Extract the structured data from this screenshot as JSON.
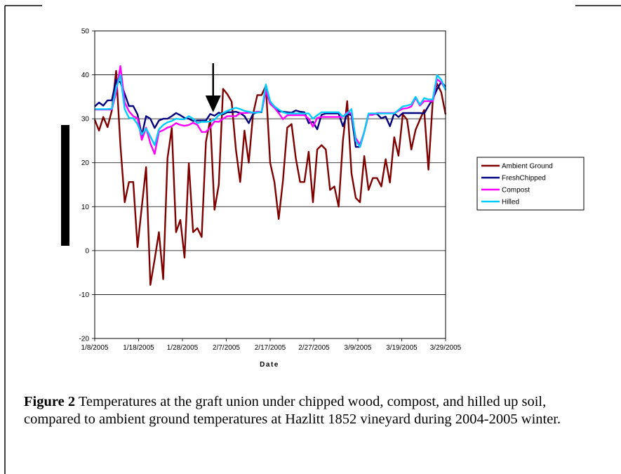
{
  "figure": {
    "label": "Figure 2",
    "text": "Temperatures at the graft union under chipped wood, compost, and hilled up soil, compared to ambient ground temperatures at Hazlitt 1852 vineyard during 2004-2005 winter."
  },
  "chart_data": {
    "type": "line",
    "title": "",
    "xlabel": "Date",
    "ylabel": "",
    "ylim": [
      -20,
      50
    ],
    "yticks": [
      -20,
      -10,
      0,
      10,
      20,
      30,
      40,
      50
    ],
    "xlim": [
      "2005-01-08",
      "2005-03-29"
    ],
    "xticks": [
      "1/8/2005",
      "1/18/2005",
      "1/28/2005",
      "2/7/2005",
      "2/17/2005",
      "2/27/2005",
      "3/9/2005",
      "3/19/2005",
      "3/29/2005"
    ],
    "grid": "horizontal",
    "legend_position": "right",
    "annotation": "arrow-down at 2/4/2005",
    "arrow_date": "2005-02-04",
    "start_date": "2005-01-08",
    "series": [
      {
        "name": "Ambient Ground",
        "color": "#800000",
        "values": [
          29.8,
          27.3,
          30.4,
          28.1,
          31.9,
          40.9,
          24.0,
          11.0,
          15.6,
          15.6,
          0.8,
          10.0,
          19.0,
          -7.8,
          -2.0,
          4.2,
          -6.5,
          21.0,
          27.9,
          4.2,
          7.0,
          -1.6,
          19.9,
          4.2,
          5.1,
          3.1,
          24.8,
          29.8,
          9.3,
          15.0,
          36.8,
          35.6,
          33.9,
          23.0,
          15.6,
          27.3,
          20.0,
          31.0,
          35.4,
          35.4,
          37.5,
          20.0,
          15.6,
          7.2,
          16.0,
          28.0,
          28.8,
          21.0,
          15.6,
          15.6,
          22.5,
          11.0,
          23.0,
          24.0,
          23.0,
          13.8,
          14.6,
          10.0,
          25.0,
          34.0,
          17.6,
          12.0,
          11.0,
          21.5,
          13.8,
          16.5,
          16.5,
          14.6,
          20.8,
          15.5,
          25.8,
          21.6,
          31.0,
          29.8,
          23.0,
          27.5,
          29.8,
          32.0,
          18.4,
          34.0,
          38.0,
          36.0,
          31.0
        ]
      },
      {
        "name": "FreshChipped",
        "color": "#000080",
        "values": [
          32.8,
          33.7,
          33.0,
          34.2,
          34.2,
          38.9,
          38.3,
          35.7,
          32.9,
          32.9,
          31.0,
          26.2,
          30.6,
          30.0,
          27.9,
          29.6,
          30.0,
          30.0,
          30.6,
          31.3,
          30.8,
          30.2,
          30.0,
          29.5,
          29.6,
          29.6,
          29.6,
          31.1,
          30.7,
          31.4,
          31.0,
          31.5,
          31.5,
          31.6,
          31.3,
          30.6,
          29.0,
          31.1,
          31.5,
          31.5,
          36.9,
          33.8,
          32.8,
          31.7,
          31.6,
          31.5,
          31.4,
          31.9,
          31.6,
          31.5,
          29.0,
          29.3,
          27.6,
          30.9,
          31.2,
          31.2,
          31.2,
          31.2,
          28.3,
          31.1,
          30.8,
          23.6,
          23.6,
          27.0,
          31.1,
          31.1,
          31.1,
          30.1,
          30.5,
          28.3,
          31.2,
          30.4,
          31.3,
          31.3,
          31.3,
          31.3,
          31.3,
          31.2,
          32.9,
          34.5,
          36.7,
          38.4,
          37.3
        ]
      },
      {
        "name": "Compost",
        "color": "#ff00ff",
        "values": [
          32.1,
          32.1,
          32.1,
          32.1,
          32.1,
          36.0,
          42.0,
          33.7,
          31.7,
          30.6,
          30.1,
          25.2,
          28.0,
          24.4,
          22.0,
          27.0,
          27.4,
          28.0,
          28.3,
          29.0,
          28.6,
          28.4,
          28.6,
          29.1,
          28.6,
          27.0,
          27.0,
          28.0,
          29.4,
          29.3,
          30.0,
          30.6,
          30.6,
          30.6,
          31.3,
          31.3,
          31.4,
          31.4,
          31.6,
          31.6,
          36.4,
          33.4,
          32.5,
          31.3,
          29.9,
          30.8,
          30.8,
          30.8,
          30.8,
          30.8,
          30.0,
          28.2,
          30.2,
          30.4,
          30.4,
          30.4,
          30.4,
          30.4,
          30.4,
          31.5,
          31.2,
          25.6,
          24.1,
          27.0,
          30.9,
          30.9,
          31.3,
          31.3,
          31.3,
          31.3,
          31.3,
          31.8,
          32.3,
          32.4,
          32.8,
          34.8,
          33.0,
          34.0,
          34.0,
          34.0,
          39.0,
          38.3,
          36.7
        ]
      },
      {
        "name": "Hilled",
        "color": "#00ccff",
        "values": [
          32.2,
          32.2,
          32.2,
          32.2,
          32.3,
          37.0,
          39.9,
          32.2,
          30.2,
          30.1,
          28.8,
          26.4,
          27.8,
          26.0,
          24.0,
          27.6,
          28.6,
          29.2,
          29.5,
          30.0,
          29.9,
          29.9,
          30.6,
          30.0,
          29.0,
          29.3,
          29.3,
          29.4,
          29.8,
          30.8,
          31.3,
          31.8,
          32.2,
          32.5,
          32.2,
          31.8,
          31.6,
          31.4,
          31.4,
          31.6,
          37.8,
          34.0,
          32.8,
          32.1,
          31.5,
          31.2,
          31.2,
          31.2,
          31.2,
          31.2,
          31.2,
          30.0,
          30.8,
          31.5,
          31.5,
          31.5,
          31.5,
          31.5,
          30.5,
          31.2,
          32.2,
          25.0,
          23.6,
          27.0,
          31.2,
          31.2,
          31.2,
          31.2,
          31.2,
          31.2,
          31.2,
          32.0,
          32.8,
          33.0,
          33.3,
          35.0,
          33.2,
          34.7,
          34.4,
          34.4,
          39.9,
          38.9,
          36.5
        ]
      }
    ]
  }
}
